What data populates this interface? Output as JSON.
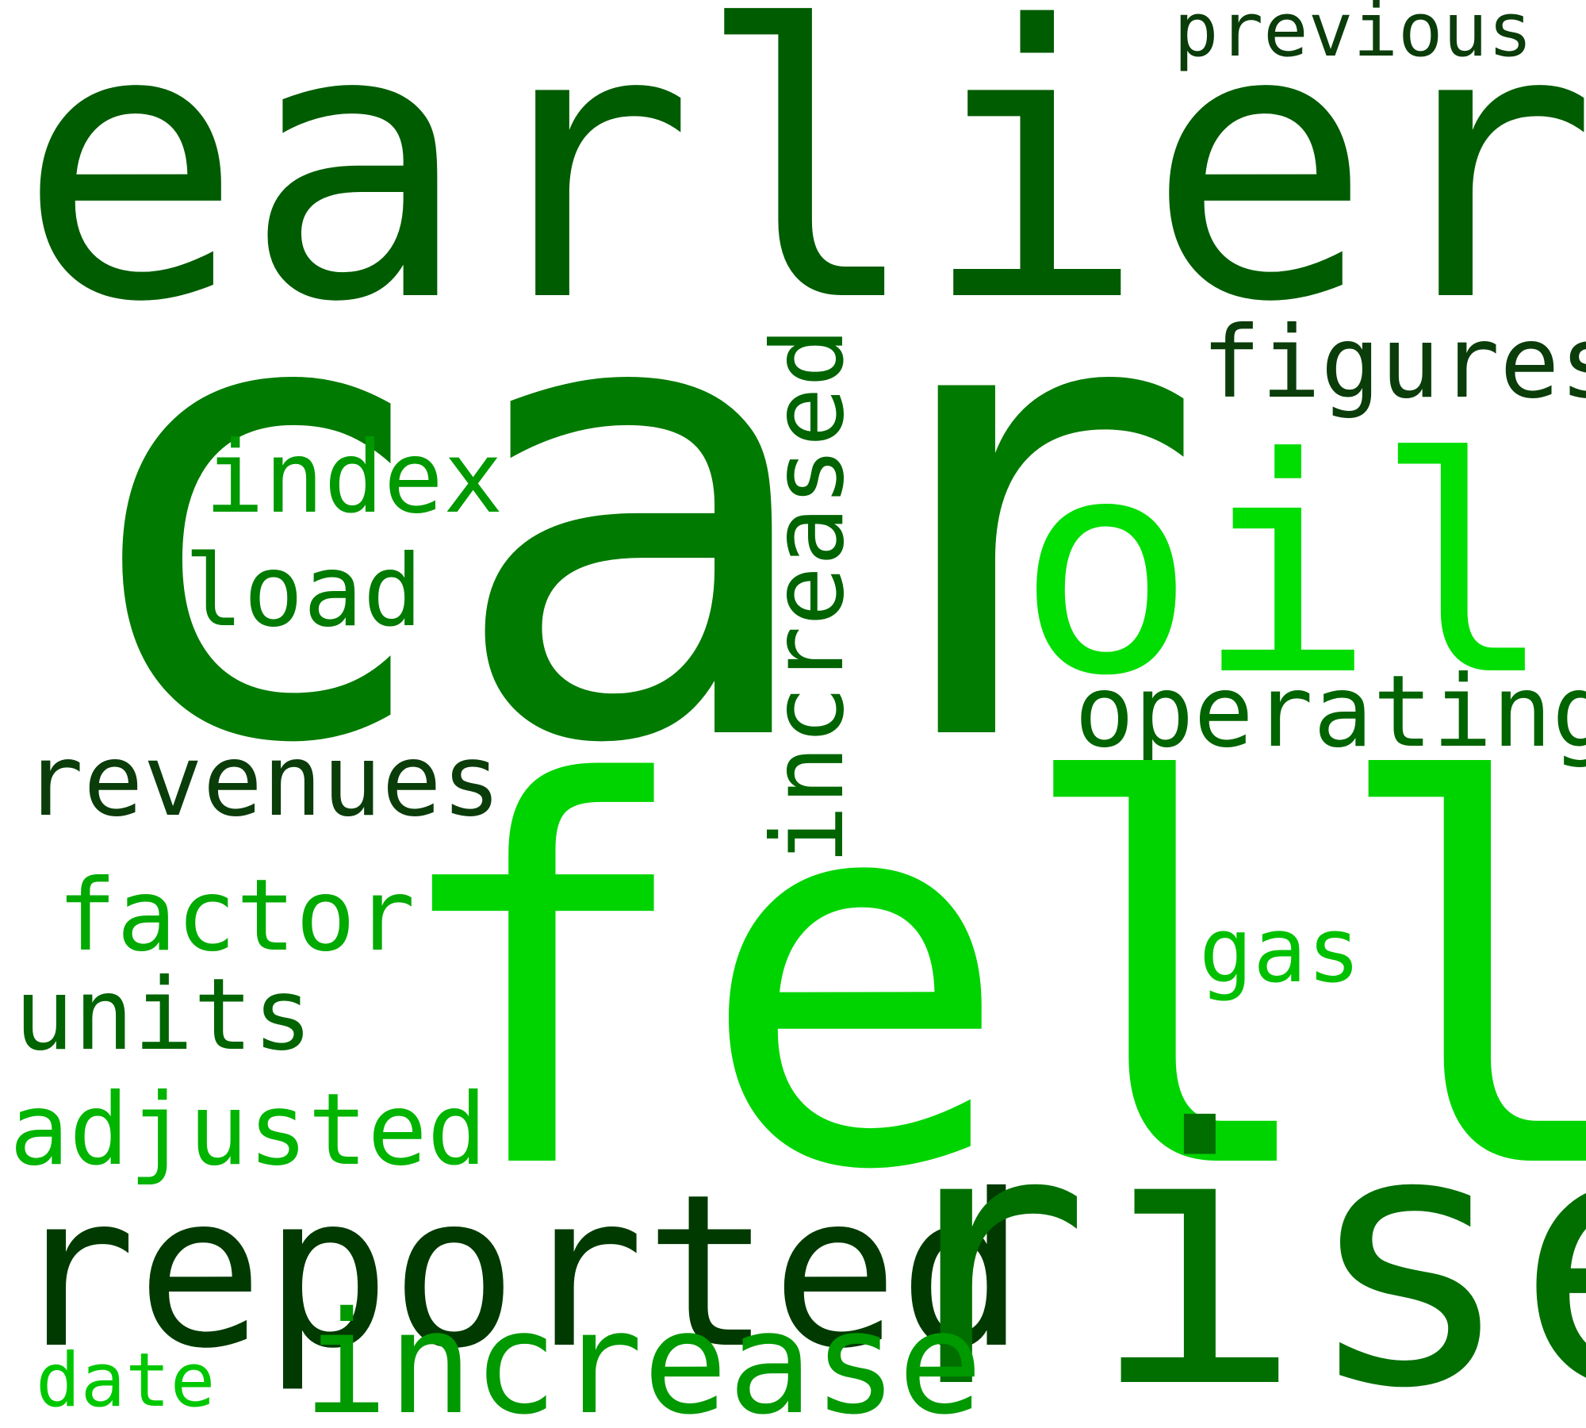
{
  "words": [
    {
      "text": "earlier",
      "color": "#005c00"
    },
    {
      "text": "previous",
      "color": "#0a3d0a"
    },
    {
      "text": "car",
      "color": "#007a00"
    },
    {
      "text": "figures",
      "color": "#0a3d0a"
    },
    {
      "text": "index",
      "color": "#009900"
    },
    {
      "text": "increased",
      "color": "#006400"
    },
    {
      "text": "oil",
      "color": "#00dd00"
    },
    {
      "text": "load",
      "color": "#007a00"
    },
    {
      "text": "operating",
      "color": "#006400"
    },
    {
      "text": "revenues",
      "color": "#0a3d0a"
    },
    {
      "text": "fell",
      "color": "#00d400"
    },
    {
      "text": "factor",
      "color": "#00aa00"
    },
    {
      "text": "gas",
      "color": "#00c000"
    },
    {
      "text": "units",
      "color": "#006400"
    },
    {
      "text": "adjusted",
      "color": "#00b400"
    },
    {
      "text": "reported",
      "color": "#003a00"
    },
    {
      "text": "rise",
      "color": "#006f00"
    },
    {
      "text": "increase",
      "color": "#009900"
    },
    {
      "text": "date",
      "color": "#00c800"
    }
  ]
}
